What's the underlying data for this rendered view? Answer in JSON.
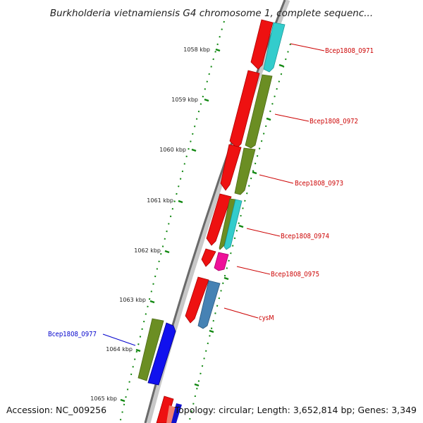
{
  "title": "Burkholderia vietnamiensis G4 chromosome 1, complete sequenc...",
  "footer": {
    "accession": "Accession: NC_009256",
    "summary": "Topology: circular; Length: 3,652,814 bp; Genes: 3,349"
  },
  "colors": {
    "backbone": "#8a8a8a",
    "tick_dots": "#118811",
    "label_red": "#cc0000",
    "label_blue": "#0000cc",
    "red_gene": "#ee1111",
    "green_gene": "#6b8e23",
    "cyan_gene": "#33cccc",
    "pink_gene": "#ee1199",
    "steelblue_gene": "#4682b4",
    "blue_gene": "#1111ee"
  },
  "kbp_ticks": [
    "1058 kbp",
    "1059 kbp",
    "1060 kbp",
    "1061 kbp",
    "1062 kbp",
    "1063 kbp",
    "1064 kbp",
    "1065 kbp"
  ],
  "gene_labels": [
    {
      "text": "Bcep1808_0971",
      "color": "red"
    },
    {
      "text": "Bcep1808_0972",
      "color": "red"
    },
    {
      "text": "Bcep1808_0973",
      "color": "red"
    },
    {
      "text": "Bcep1808_0974",
      "color": "red"
    },
    {
      "text": "Bcep1808_0975",
      "color": "red"
    },
    {
      "text": "cysM",
      "color": "red"
    },
    {
      "text": "Bcep1808_0977",
      "color": "blue"
    }
  ]
}
